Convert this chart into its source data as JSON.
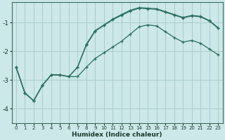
{
  "xlabel": "Humidex (Indice chaleur)",
  "bg_color": "#cce8e8",
  "grid_color": "#aacccc",
  "line_color": "#2a6e5e",
  "xlim": [
    -0.5,
    23.5
  ],
  "ylim": [
    -4.5,
    -0.3
  ],
  "xticks": [
    0,
    1,
    2,
    3,
    4,
    5,
    6,
    7,
    8,
    9,
    10,
    11,
    12,
    13,
    14,
    15,
    16,
    17,
    18,
    19,
    20,
    21,
    22,
    23
  ],
  "yticks": [
    -4,
    -3,
    -2,
    -1
  ],
  "line1_y": [
    -2.55,
    -3.45,
    -3.72,
    -3.18,
    -2.82,
    -2.82,
    -2.88,
    -2.55,
    -1.75,
    -1.28,
    -1.08,
    -0.88,
    -0.72,
    -0.57,
    -0.48,
    -0.5,
    -0.52,
    -0.62,
    -0.72,
    -0.82,
    -0.75,
    -0.78,
    -0.93,
    -1.18
  ],
  "line2_y": [
    -2.55,
    -3.45,
    -3.72,
    -3.18,
    -2.82,
    -2.82,
    -2.88,
    -2.55,
    -1.78,
    -1.3,
    -1.1,
    -0.9,
    -0.75,
    -0.6,
    -0.5,
    -0.52,
    -0.54,
    -0.64,
    -0.74,
    -0.84,
    -0.77,
    -0.8,
    -0.95,
    -1.2
  ],
  "line3_y": [
    -2.55,
    -3.45,
    -3.72,
    -3.18,
    -2.82,
    -2.82,
    -2.88,
    -2.88,
    -2.55,
    -2.25,
    -2.05,
    -1.85,
    -1.65,
    -1.4,
    -1.15,
    -1.08,
    -1.12,
    -1.32,
    -1.52,
    -1.68,
    -1.62,
    -1.72,
    -1.92,
    -2.12
  ]
}
